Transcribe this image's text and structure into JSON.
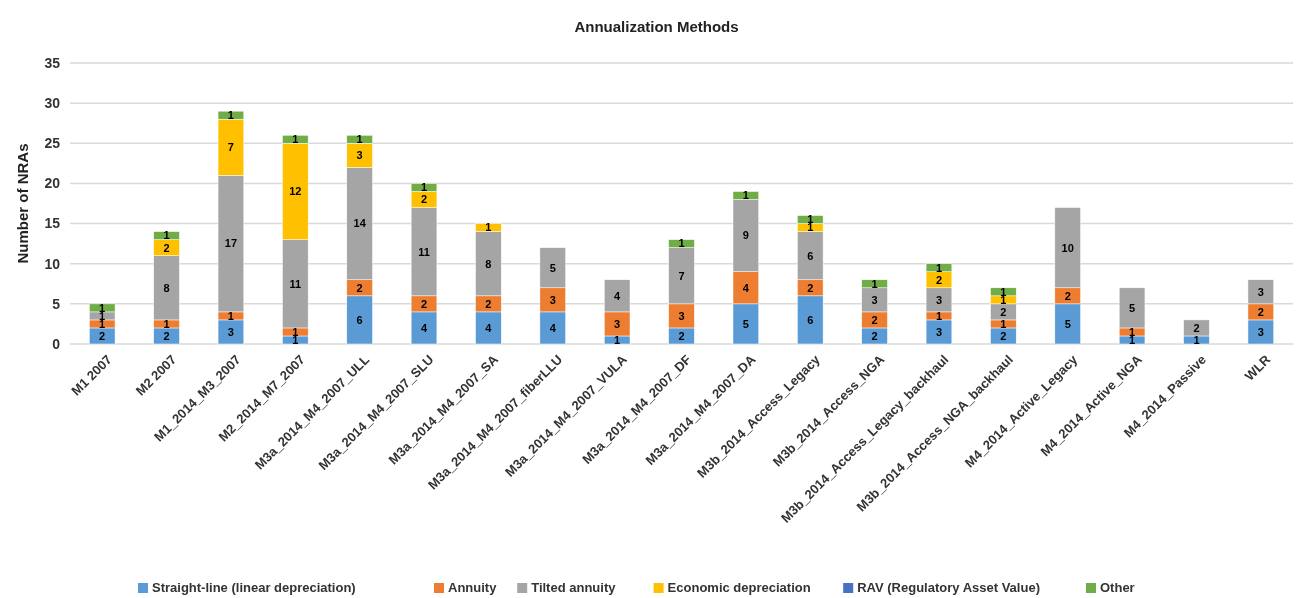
{
  "chart_data": {
    "type": "bar",
    "title": "Annualization Methods",
    "ylabel": "Number of NRAs",
    "stacked": true,
    "data_labels": true,
    "grid": "y",
    "legend": "bottom",
    "ylim": [
      0,
      35
    ],
    "yticks": [
      0,
      5,
      10,
      15,
      20,
      25,
      30,
      35
    ],
    "categories": [
      "M1 2007",
      "M2 2007",
      "M1_2014_M3_2007",
      "M2_2014_M7_2007",
      "M3a_2014_M4_2007_ULL",
      "M3a_2014_M4_2007_SLU",
      "M3a_2014_M4_2007_SA",
      "M3a_2014_M4_2007_fiberLLU",
      "M3a_2014_M4_2007_VULA",
      "M3a_2014_M4_2007_DF",
      "M3a_2014_M4_2007_DA",
      "M3b_2014_Access_Legacy",
      "M3b_2014_Access_NGA",
      "M3b_2014_Access_Legacy_backhaul",
      "M3b_2014_Access_NGA_backhaul",
      "M4_2014_Active_Legacy",
      "M4_2014_Active_NGA",
      "M4_2014_Passive",
      "WLR"
    ],
    "series": [
      {
        "name": "Straight-line (linear depreciation)",
        "color": "#5b9bd5",
        "values": [
          2,
          2,
          3,
          1,
          6,
          4,
          4,
          4,
          1,
          2,
          5,
          6,
          2,
          3,
          2,
          5,
          1,
          1,
          3
        ]
      },
      {
        "name": "Annuity",
        "color": "#ed7d31",
        "values": [
          1,
          1,
          1,
          1,
          2,
          2,
          2,
          3,
          3,
          3,
          4,
          2,
          2,
          1,
          1,
          2,
          1,
          null,
          2
        ]
      },
      {
        "name": "Tilted annuity",
        "color": "#a5a5a5",
        "values": [
          1,
          8,
          17,
          11,
          14,
          11,
          8,
          5,
          4,
          7,
          9,
          6,
          3,
          3,
          2,
          10,
          5,
          2,
          3
        ]
      },
      {
        "name": "Economic depreciation",
        "color": "#ffc000",
        "values": [
          null,
          2,
          7,
          12,
          3,
          2,
          1,
          null,
          null,
          null,
          null,
          1,
          null,
          2,
          1,
          null,
          null,
          null,
          null
        ]
      },
      {
        "name": "RAV (Regulatory Asset Value)",
        "color": "#4472c4",
        "values": [
          null,
          null,
          null,
          null,
          null,
          null,
          null,
          null,
          null,
          null,
          null,
          null,
          null,
          null,
          null,
          null,
          null,
          null,
          null
        ]
      },
      {
        "name": "Other",
        "color": "#70ad47",
        "values": [
          1,
          1,
          1,
          1,
          1,
          1,
          null,
          null,
          null,
          1,
          1,
          1,
          1,
          1,
          1,
          null,
          null,
          null,
          null
        ]
      }
    ]
  }
}
